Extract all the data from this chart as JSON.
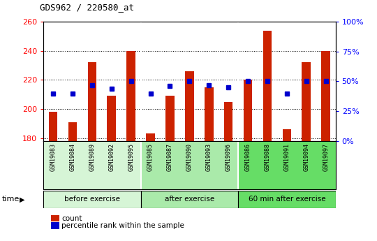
{
  "title": "GDS962 / 220580_at",
  "samples": [
    "GSM19083",
    "GSM19084",
    "GSM19089",
    "GSM19092",
    "GSM19095",
    "GSM19085",
    "GSM19087",
    "GSM19090",
    "GSM19093",
    "GSM19096",
    "GSM19086",
    "GSM19088",
    "GSM19091",
    "GSM19094",
    "GSM19097"
  ],
  "count_values": [
    198,
    191,
    232,
    209,
    240,
    183,
    209,
    226,
    215,
    205,
    220,
    254,
    186,
    232,
    240
  ],
  "percentile_values": [
    40,
    40,
    47,
    44,
    50,
    40,
    46,
    50,
    47,
    45,
    50,
    50,
    40,
    50,
    50
  ],
  "groups": [
    {
      "label": "before exercise",
      "start": 0,
      "end": 5,
      "color": "#d6f5d6"
    },
    {
      "label": "after exercise",
      "start": 5,
      "end": 10,
      "color": "#aaeaaa"
    },
    {
      "label": "60 min after exercise",
      "start": 10,
      "end": 15,
      "color": "#66dd66"
    }
  ],
  "ylim_left": [
    178,
    260
  ],
  "ylim_right": [
    0,
    100
  ],
  "yticks_left": [
    180,
    200,
    220,
    240,
    260
  ],
  "yticks_right": [
    0,
    25,
    50,
    75,
    100
  ],
  "bar_color": "#cc2200",
  "dot_color": "#0000cc",
  "bar_bottom": 178,
  "plot_bg": "#ffffff",
  "tick_area_bg": "#c8c8c8",
  "grid_color": "#000000",
  "fig_bg": "#ffffff"
}
